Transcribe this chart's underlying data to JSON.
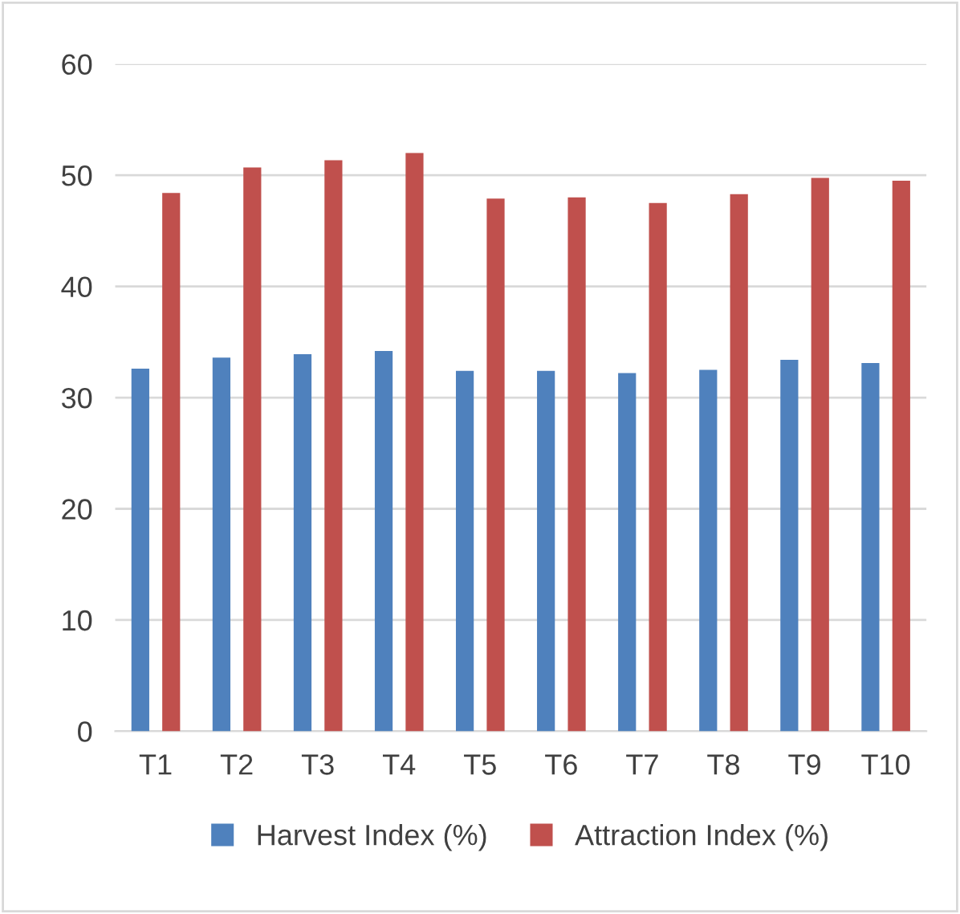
{
  "chart_data": {
    "type": "bar",
    "categories": [
      "T1",
      "T2",
      "T3",
      "T4",
      "T5",
      "T6",
      "T7",
      "T8",
      "T9",
      "T10"
    ],
    "series": [
      {
        "name": "Harvest Index (%)",
        "color": "#4f81bd",
        "values": [
          32.6,
          33.6,
          33.9,
          34.2,
          32.4,
          32.4,
          32.2,
          32.5,
          33.4,
          33.1
        ]
      },
      {
        "name": "Attraction Index (%)",
        "color": "#c0504d",
        "values": [
          48.4,
          50.7,
          51.35,
          52.0,
          47.9,
          48.0,
          47.5,
          48.3,
          49.75,
          49.5
        ]
      }
    ],
    "ylim": [
      0,
      60
    ],
    "yticks": [
      0,
      10,
      20,
      30,
      40,
      50,
      60
    ],
    "grid": "y",
    "legend": "bottom"
  }
}
